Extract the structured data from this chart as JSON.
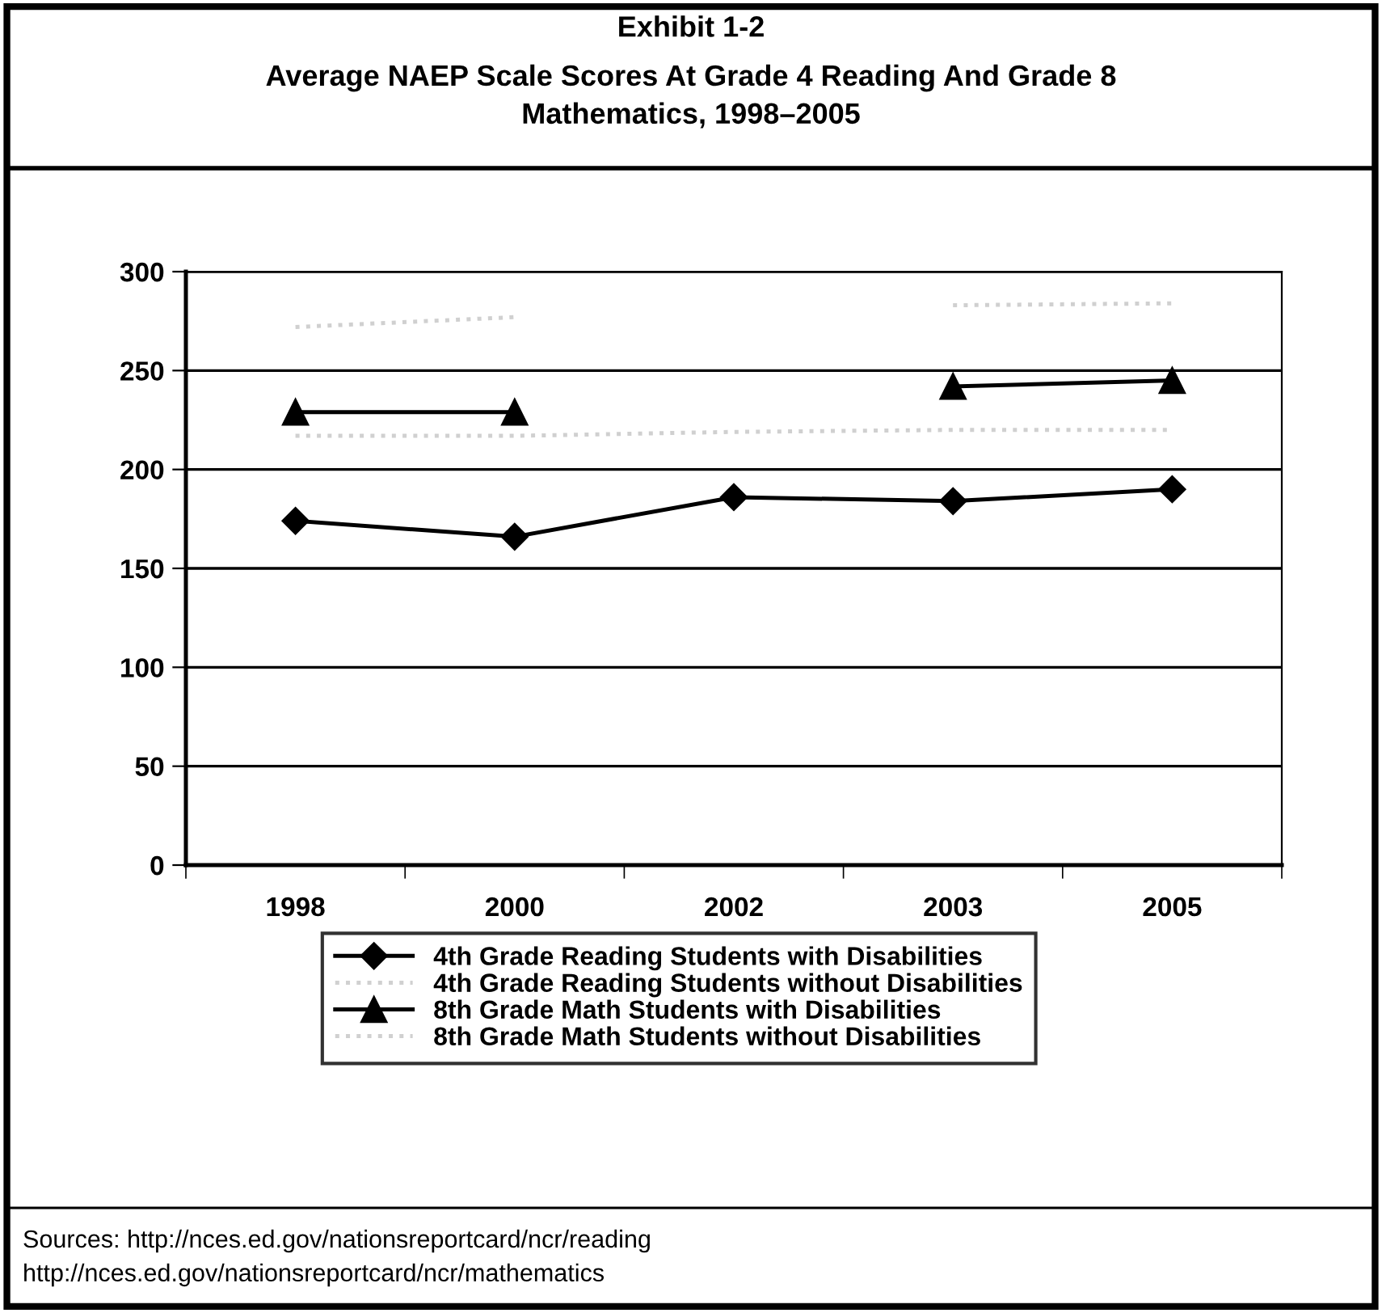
{
  "chart_data": {
    "type": "line",
    "title": "Exhibit 1-2",
    "subtitle": "Average NAEP Scale Scores At Grade 4 Reading And Grade 8\nMathematics, 1998–2005",
    "categories": [
      "1998",
      "2000",
      "2002",
      "2003",
      "2005"
    ],
    "series": [
      {
        "name": "4th Grade Reading Students with Disabilities",
        "color": "#000000",
        "marker": "diamond",
        "values": [
          174,
          166,
          186,
          184,
          190
        ]
      },
      {
        "name": "4th Grade Reading Students without Disabilities",
        "color": "#d0d0d0",
        "marker": "none",
        "line_style": "dotted",
        "values": [
          217,
          217,
          219,
          220,
          220
        ]
      },
      {
        "name": "8th Grade Math Students with Disabilities",
        "color": "#000000",
        "marker": "triangle",
        "values": [
          229,
          229,
          null,
          242,
          245
        ]
      },
      {
        "name": "8th Grade Math Students without Disabilities",
        "color": "#d0d0d0",
        "marker": "none",
        "line_style": "dotted",
        "values": [
          272,
          277,
          null,
          283,
          284
        ]
      }
    ],
    "ylim": [
      0,
      300
    ],
    "yticks": [
      0,
      50,
      100,
      150,
      200,
      250,
      300
    ],
    "grid": "y",
    "legend": "bottom",
    "annotations": [
      "Sources: http://nces.ed.gov/nationsreportcard/ncr/reading\nhttp://nces.ed.gov/nationsreportcard/ncr/mathematics"
    ]
  }
}
